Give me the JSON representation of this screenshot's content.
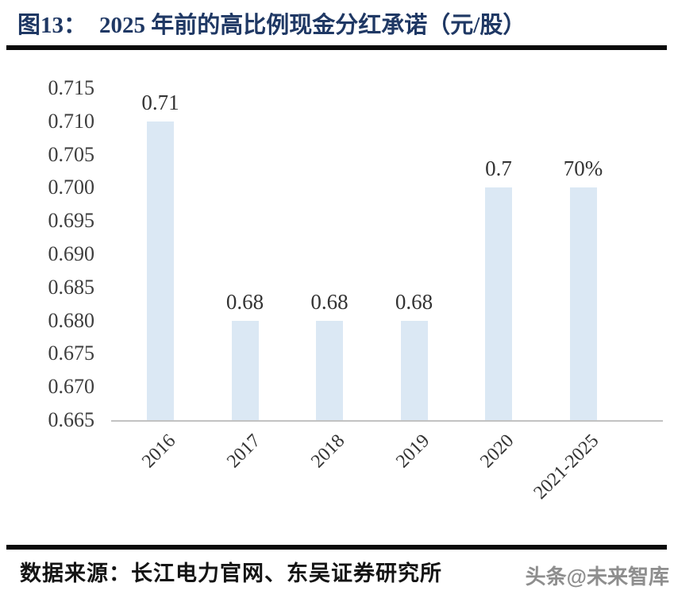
{
  "figure": {
    "title_prefix": "图13：",
    "title_text": "2025 年前的高比例现金分红承诺（元/股）",
    "title_color": "#1f3864",
    "source_text": "数据来源：长江电力官网、东吴证券研究所",
    "watermark": "头条@未来智库"
  },
  "chart_data": {
    "type": "bar",
    "title": "2025 年前的高比例现金分红承诺（元/股）",
    "categories": [
      "2016",
      "2017",
      "2018",
      "2019",
      "2020",
      "2021-2025"
    ],
    "values": [
      0.71,
      0.68,
      0.68,
      0.68,
      0.7,
      0.7
    ],
    "data_labels": [
      "0.71",
      "0.68",
      "0.68",
      "0.68",
      "0.7",
      "70%"
    ],
    "xlabel": "",
    "ylabel": "",
    "ylim": [
      0.665,
      0.715
    ],
    "ytick_step": 0.005,
    "ytick_labels": [
      "0.715",
      "0.710",
      "0.705",
      "0.700",
      "0.695",
      "0.690",
      "0.685",
      "0.680",
      "0.675",
      "0.670",
      "0.665"
    ],
    "bar_color": "#dbe8f4",
    "axis_line_color": "#c2c2c2",
    "tick_label_color": "#3d3d3d",
    "grid": false,
    "legend": null
  }
}
